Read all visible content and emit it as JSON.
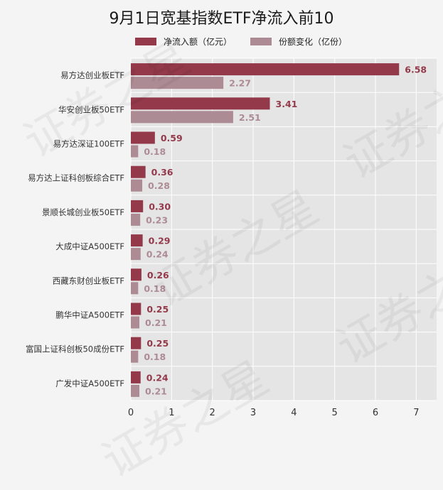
{
  "chart_data": {
    "type": "bar",
    "orientation": "horizontal",
    "title": "9月1日宽基指数ETF净流入前10",
    "categories": [
      "易方达创业板ETF",
      "华安创业板50ETF",
      "易方达深证100ETF",
      "易方达上证科创板综合ETF",
      "景顺长城创业板50ETF",
      "大成中证A500ETF",
      "西藏东财创业板ETF",
      "鹏华中证A500ETF",
      "富国上证科创板50成份ETF",
      "广发中证A500ETF"
    ],
    "series": [
      {
        "name": "净流入额（亿元）",
        "color": "#93394a",
        "values": [
          6.58,
          3.41,
          0.59,
          0.36,
          0.3,
          0.29,
          0.26,
          0.25,
          0.25,
          0.24
        ],
        "labels": [
          "6.58",
          "3.41",
          "0.59",
          "0.36",
          "0.30",
          "0.29",
          "0.26",
          "0.25",
          "0.25",
          "0.24"
        ]
      },
      {
        "name": "份额变化（亿份）",
        "color": "#ad8b94",
        "values": [
          2.27,
          2.51,
          0.18,
          0.28,
          0.23,
          0.24,
          0.18,
          0.21,
          0.18,
          0.21
        ],
        "labels": [
          "2.27",
          "2.51",
          "0.18",
          "0.28",
          "0.23",
          "0.24",
          "0.18",
          "0.21",
          "0.18",
          "0.21"
        ]
      }
    ],
    "xlim": [
      0,
      7.5
    ],
    "xticks": [
      0,
      1,
      2,
      3,
      4,
      5,
      6,
      7
    ],
    "xtick_labels": [
      "0",
      "1",
      "2",
      "3",
      "4",
      "5",
      "6",
      "7"
    ],
    "grid": true,
    "legend_position": "top",
    "plot_background": "#e5e5e5",
    "watermark": "证券之星"
  }
}
